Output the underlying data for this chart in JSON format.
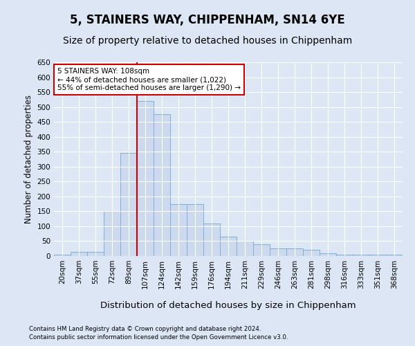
{
  "title": "5, STAINERS WAY, CHIPPENHAM, SN14 6YE",
  "subtitle": "Size of property relative to detached houses in Chippenham",
  "xlabel": "Distribution of detached houses by size in Chippenham",
  "ylabel": "Number of detached properties",
  "categories": [
    "20sqm",
    "37sqm",
    "55sqm",
    "72sqm",
    "89sqm",
    "107sqm",
    "124sqm",
    "142sqm",
    "159sqm",
    "176sqm",
    "194sqm",
    "211sqm",
    "229sqm",
    "246sqm",
    "263sqm",
    "281sqm",
    "298sqm",
    "316sqm",
    "333sqm",
    "351sqm",
    "368sqm"
  ],
  "values": [
    5,
    15,
    15,
    150,
    345,
    520,
    475,
    175,
    175,
    110,
    65,
    50,
    40,
    25,
    25,
    20,
    10,
    5,
    5,
    5,
    5
  ],
  "bar_color": "#ccd9ee",
  "bar_edge_color": "#7aafd4",
  "highlight_line_index": 5,
  "highlight_line_color": "#cc0000",
  "annotation_line1": "5 STAINERS WAY: 108sqm",
  "annotation_line2": "← 44% of detached houses are smaller (1,022)",
  "annotation_line3": "55% of semi-detached houses are larger (1,290) →",
  "annotation_box_color": "#ffffff",
  "annotation_box_edge": "#cc0000",
  "ylim": [
    0,
    650
  ],
  "yticks": [
    0,
    50,
    100,
    150,
    200,
    250,
    300,
    350,
    400,
    450,
    500,
    550,
    600,
    650
  ],
  "background_color": "#dde6f5",
  "plot_bg_color": "#dde6f5",
  "footer_line1": "Contains HM Land Registry data © Crown copyright and database right 2024.",
  "footer_line2": "Contains public sector information licensed under the Open Government Licence v3.0.",
  "title_fontsize": 12,
  "subtitle_fontsize": 10,
  "xlabel_fontsize": 9.5,
  "ylabel_fontsize": 8.5
}
